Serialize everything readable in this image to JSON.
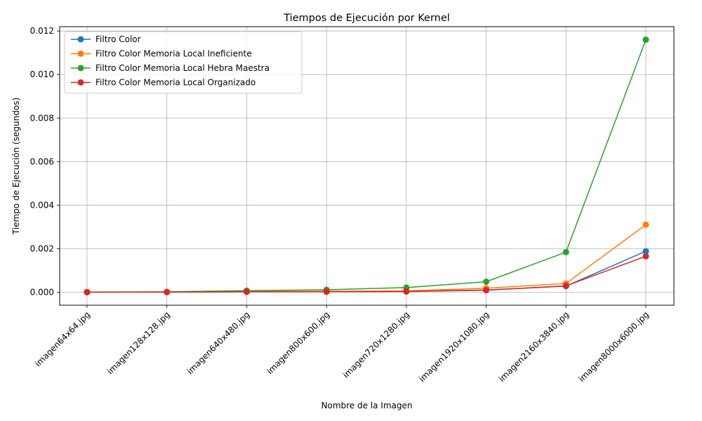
{
  "chart_data": {
    "type": "line",
    "title": "Tiempos de Ejecución por Kernel",
    "xlabel": "Nombre de la Imagen",
    "ylabel": "Tiempo de Ejecución (segundos)",
    "categories": [
      "imagen64x64.jpg",
      "imagen128x128.jpg",
      "imagen640x480.jpg",
      "imagen800x600.jpg",
      "imagen720x1280.jpg",
      "imagen1920x1080.jpg",
      "imagen2160x3840.jpg",
      "imagen8000x6000.jpg"
    ],
    "ylim": [
      -0.0006,
      0.0122
    ],
    "yticks": [
      0,
      0.002,
      0.004,
      0.006,
      0.008,
      0.01,
      0.012
    ],
    "ytick_labels": [
      "0.000",
      "0.002",
      "0.004",
      "0.006",
      "0.008",
      "0.010",
      "0.012"
    ],
    "grid": true,
    "legend_position": "top-left",
    "series": [
      {
        "name": "Filtro Color",
        "color": "#1f77b4",
        "values": [
          2e-06,
          4e-06,
          2e-05,
          3e-05,
          4e-05,
          0.0001,
          0.00028,
          0.00188
        ]
      },
      {
        "name": "Filtro Color Memoria Local Ineficiente",
        "color": "#ff7f0e",
        "values": [
          3e-06,
          6e-06,
          3e-05,
          4e-05,
          6e-05,
          0.00018,
          0.0004,
          0.0031
        ]
      },
      {
        "name": "Filtro Color Memoria Local Hebra Maestra",
        "color": "#2ca02c",
        "values": [
          5e-06,
          1.5e-05,
          7e-05,
          0.00011,
          0.00021,
          0.00048,
          0.00184,
          0.0116
        ]
      },
      {
        "name": "Filtro Color Memoria Local Organizado",
        "color": "#d62728",
        "values": [
          2e-06,
          3e-06,
          1.5e-05,
          2e-05,
          3e-05,
          9e-05,
          0.00029,
          0.00165
        ]
      }
    ]
  }
}
